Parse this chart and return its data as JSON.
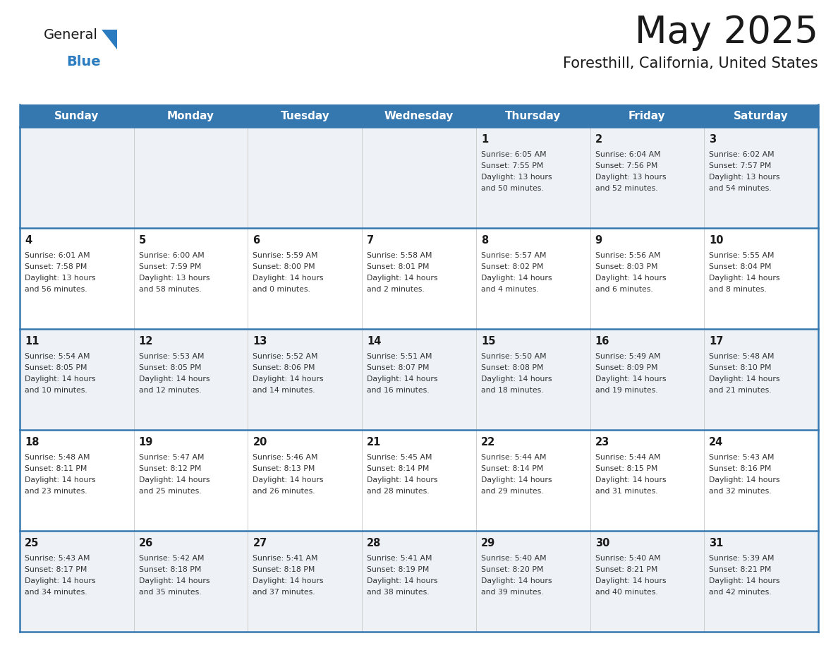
{
  "title": "May 2025",
  "subtitle": "Foresthill, California, United States",
  "header_bg": "#3578b0",
  "header_text": "#ffffff",
  "odd_row_bg": "#eef2f7",
  "even_row_bg": "#ffffff",
  "border_color": "#3578b0",
  "day_headers": [
    "Sunday",
    "Monday",
    "Tuesday",
    "Wednesday",
    "Thursday",
    "Friday",
    "Saturday"
  ],
  "title_color": "#1a1a1a",
  "subtitle_color": "#1a1a1a",
  "day_number_color": "#1a1a1a",
  "cell_text_color": "#333333",
  "logo_general_color": "#1a1a1a",
  "logo_blue_color": "#2a7bbf",
  "weeks": [
    [
      {
        "day": "",
        "sunrise": "",
        "sunset": "",
        "daylight": ""
      },
      {
        "day": "",
        "sunrise": "",
        "sunset": "",
        "daylight": ""
      },
      {
        "day": "",
        "sunrise": "",
        "sunset": "",
        "daylight": ""
      },
      {
        "day": "",
        "sunrise": "",
        "sunset": "",
        "daylight": ""
      },
      {
        "day": "1",
        "sunrise": "6:05 AM",
        "sunset": "7:55 PM",
        "daylight_h": "13",
        "daylight_m": "50"
      },
      {
        "day": "2",
        "sunrise": "6:04 AM",
        "sunset": "7:56 PM",
        "daylight_h": "13",
        "daylight_m": "52"
      },
      {
        "day": "3",
        "sunrise": "6:02 AM",
        "sunset": "7:57 PM",
        "daylight_h": "13",
        "daylight_m": "54"
      }
    ],
    [
      {
        "day": "4",
        "sunrise": "6:01 AM",
        "sunset": "7:58 PM",
        "daylight_h": "13",
        "daylight_m": "56"
      },
      {
        "day": "5",
        "sunrise": "6:00 AM",
        "sunset": "7:59 PM",
        "daylight_h": "13",
        "daylight_m": "58"
      },
      {
        "day": "6",
        "sunrise": "5:59 AM",
        "sunset": "8:00 PM",
        "daylight_h": "14",
        "daylight_m": "0"
      },
      {
        "day": "7",
        "sunrise": "5:58 AM",
        "sunset": "8:01 PM",
        "daylight_h": "14",
        "daylight_m": "2"
      },
      {
        "day": "8",
        "sunrise": "5:57 AM",
        "sunset": "8:02 PM",
        "daylight_h": "14",
        "daylight_m": "4"
      },
      {
        "day": "9",
        "sunrise": "5:56 AM",
        "sunset": "8:03 PM",
        "daylight_h": "14",
        "daylight_m": "6"
      },
      {
        "day": "10",
        "sunrise": "5:55 AM",
        "sunset": "8:04 PM",
        "daylight_h": "14",
        "daylight_m": "8"
      }
    ],
    [
      {
        "day": "11",
        "sunrise": "5:54 AM",
        "sunset": "8:05 PM",
        "daylight_h": "14",
        "daylight_m": "10"
      },
      {
        "day": "12",
        "sunrise": "5:53 AM",
        "sunset": "8:05 PM",
        "daylight_h": "14",
        "daylight_m": "12"
      },
      {
        "day": "13",
        "sunrise": "5:52 AM",
        "sunset": "8:06 PM",
        "daylight_h": "14",
        "daylight_m": "14"
      },
      {
        "day": "14",
        "sunrise": "5:51 AM",
        "sunset": "8:07 PM",
        "daylight_h": "14",
        "daylight_m": "16"
      },
      {
        "day": "15",
        "sunrise": "5:50 AM",
        "sunset": "8:08 PM",
        "daylight_h": "14",
        "daylight_m": "18"
      },
      {
        "day": "16",
        "sunrise": "5:49 AM",
        "sunset": "8:09 PM",
        "daylight_h": "14",
        "daylight_m": "19"
      },
      {
        "day": "17",
        "sunrise": "5:48 AM",
        "sunset": "8:10 PM",
        "daylight_h": "14",
        "daylight_m": "21"
      }
    ],
    [
      {
        "day": "18",
        "sunrise": "5:48 AM",
        "sunset": "8:11 PM",
        "daylight_h": "14",
        "daylight_m": "23"
      },
      {
        "day": "19",
        "sunrise": "5:47 AM",
        "sunset": "8:12 PM",
        "daylight_h": "14",
        "daylight_m": "25"
      },
      {
        "day": "20",
        "sunrise": "5:46 AM",
        "sunset": "8:13 PM",
        "daylight_h": "14",
        "daylight_m": "26"
      },
      {
        "day": "21",
        "sunrise": "5:45 AM",
        "sunset": "8:14 PM",
        "daylight_h": "14",
        "daylight_m": "28"
      },
      {
        "day": "22",
        "sunrise": "5:44 AM",
        "sunset": "8:14 PM",
        "daylight_h": "14",
        "daylight_m": "29"
      },
      {
        "day": "23",
        "sunrise": "5:44 AM",
        "sunset": "8:15 PM",
        "daylight_h": "14",
        "daylight_m": "31"
      },
      {
        "day": "24",
        "sunrise": "5:43 AM",
        "sunset": "8:16 PM",
        "daylight_h": "14",
        "daylight_m": "32"
      }
    ],
    [
      {
        "day": "25",
        "sunrise": "5:43 AM",
        "sunset": "8:17 PM",
        "daylight_h": "14",
        "daylight_m": "34"
      },
      {
        "day": "26",
        "sunrise": "5:42 AM",
        "sunset": "8:18 PM",
        "daylight_h": "14",
        "daylight_m": "35"
      },
      {
        "day": "27",
        "sunrise": "5:41 AM",
        "sunset": "8:18 PM",
        "daylight_h": "14",
        "daylight_m": "37"
      },
      {
        "day": "28",
        "sunrise": "5:41 AM",
        "sunset": "8:19 PM",
        "daylight_h": "14",
        "daylight_m": "38"
      },
      {
        "day": "29",
        "sunrise": "5:40 AM",
        "sunset": "8:20 PM",
        "daylight_h": "14",
        "daylight_m": "39"
      },
      {
        "day": "30",
        "sunrise": "5:40 AM",
        "sunset": "8:21 PM",
        "daylight_h": "14",
        "daylight_m": "40"
      },
      {
        "day": "31",
        "sunrise": "5:39 AM",
        "sunset": "8:21 PM",
        "daylight_h": "14",
        "daylight_m": "42"
      }
    ]
  ]
}
